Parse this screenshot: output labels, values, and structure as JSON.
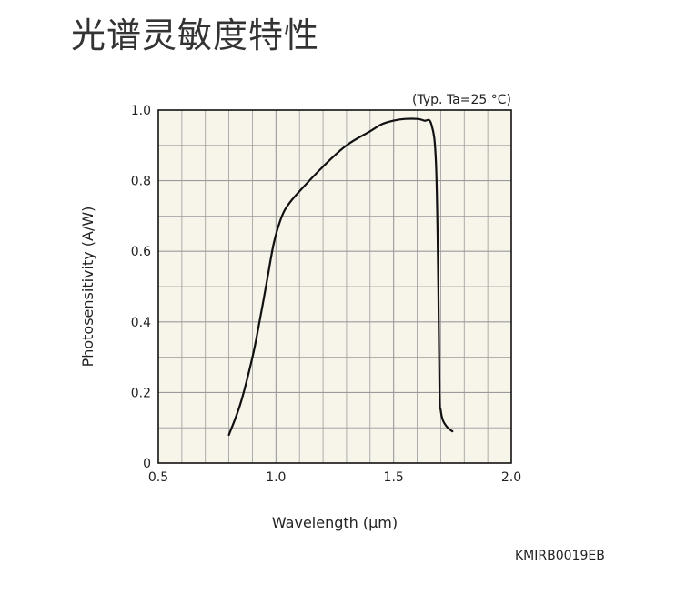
{
  "page": {
    "title": "光谱灵敏度特性",
    "code": "KMIRB0019EB"
  },
  "chart_data": {
    "type": "line",
    "note": "(Typ. Ta=25 °C)",
    "xlabel": "Wavelength (μm)",
    "ylabel": "Photosensitivity (A/W)",
    "xlim": [
      0.5,
      2.0
    ],
    "ylim": [
      0,
      1.0
    ],
    "grid": true,
    "x_ticks": [
      0.5,
      1.0,
      1.5,
      2.0
    ],
    "x_tick_labels": [
      "0.5",
      "1.0",
      "1.5",
      "2.0"
    ],
    "y_ticks": [
      0,
      0.2,
      0.4,
      0.6,
      0.8,
      1.0
    ],
    "y_tick_labels": [
      "0",
      "0.2",
      "0.4",
      "0.6",
      "0.8",
      "1.0"
    ],
    "x_minor_step": 0.1,
    "y_minor_step": 0.1,
    "colors": {
      "plot_bg": "#f7f4ea",
      "grid": "#9a9a9a",
      "line": "#111111"
    },
    "series": [
      {
        "x": [
          0.8,
          0.85,
          0.9,
          0.93,
          0.96,
          0.99,
          1.02,
          1.05,
          1.1,
          1.2,
          1.3,
          1.4,
          1.45,
          1.5,
          1.55,
          1.6,
          1.63,
          1.66,
          1.68,
          1.69,
          1.695,
          1.7,
          1.71,
          1.73,
          1.75
        ],
        "y": [
          0.08,
          0.17,
          0.3,
          0.4,
          0.51,
          0.62,
          0.69,
          0.73,
          0.77,
          0.84,
          0.9,
          0.94,
          0.96,
          0.97,
          0.975,
          0.975,
          0.97,
          0.96,
          0.85,
          0.5,
          0.2,
          0.15,
          0.12,
          0.1,
          0.09
        ]
      }
    ]
  }
}
